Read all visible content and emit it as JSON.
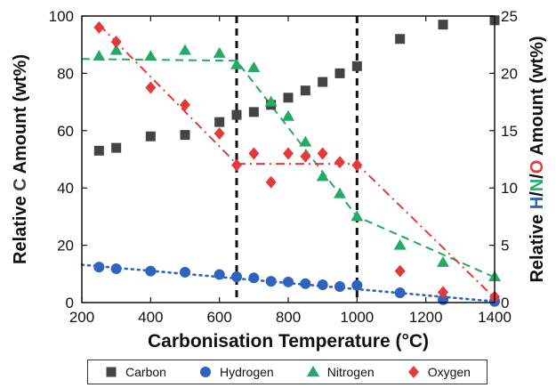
{
  "chart_data": {
    "type": "scatter",
    "xlabel": "Carbonisation Temperature (°C)",
    "ylabel_left": {
      "parts": [
        {
          "text": "Relative ",
          "color": "#111111"
        },
        {
          "text": "C",
          "color": "#444444"
        },
        {
          "text": " Amount (wt%)",
          "color": "#111111"
        }
      ]
    },
    "ylabel_right": {
      "parts": [
        {
          "text": "Relative ",
          "color": "#111111"
        },
        {
          "text": "H",
          "color": "#2f63c0"
        },
        {
          "text": "/",
          "color": "#111111"
        },
        {
          "text": "N",
          "color": "#22aa66"
        },
        {
          "text": "/",
          "color": "#111111"
        },
        {
          "text": "O",
          "color": "#e33b3b"
        },
        {
          "text": " Amount (wt%)",
          "color": "#111111"
        }
      ]
    },
    "xlim": [
      200,
      1400
    ],
    "ylim_left": [
      0,
      100
    ],
    "ylim_right": [
      0,
      25
    ],
    "xticks": [
      200,
      400,
      600,
      800,
      1000,
      1200,
      1400
    ],
    "yticks_left": [
      0,
      20,
      40,
      60,
      80,
      100
    ],
    "yticks_right": [
      0,
      5,
      10,
      15,
      20,
      25
    ],
    "vlines": [
      650,
      1000
    ],
    "grid": false,
    "legend_position": "bottom",
    "series": [
      {
        "name": "Carbon",
        "axis": "left",
        "marker": "square",
        "color": "#444444",
        "x": [
          250,
          300,
          400,
          500,
          600,
          650,
          700,
          750,
          800,
          850,
          900,
          950,
          1000,
          1125,
          1250,
          1400
        ],
        "y": [
          53,
          54,
          58,
          58.5,
          63,
          65.5,
          66.5,
          69,
          71.5,
          74,
          77,
          80,
          82.5,
          92,
          97,
          98.5
        ]
      },
      {
        "name": "Hydrogen",
        "axis": "right",
        "marker": "circle",
        "color": "#2f63c0",
        "fit_line": "dotted",
        "x": [
          250,
          300,
          400,
          500,
          600,
          650,
          700,
          750,
          800,
          850,
          900,
          950,
          1000,
          1125,
          1250,
          1400
        ],
        "y": [
          3.1,
          2.95,
          2.75,
          2.65,
          2.45,
          2.25,
          2.15,
          1.85,
          1.8,
          1.65,
          1.55,
          1.4,
          1.5,
          0.85,
          0.25,
          0.1
        ],
        "fit": {
          "x": [
            200,
            1400
          ],
          "y": [
            3.3,
            0.1
          ]
        }
      },
      {
        "name": "Nitrogen",
        "axis": "right",
        "marker": "triangle",
        "color": "#22aa66",
        "fit_line": "dashed",
        "x": [
          250,
          300,
          400,
          500,
          600,
          650,
          700,
          750,
          800,
          850,
          900,
          950,
          1000,
          1125,
          1250,
          1400
        ],
        "y": [
          21.5,
          22,
          21.5,
          22,
          21.75,
          20.75,
          20.5,
          17.5,
          16.25,
          14,
          11,
          9.5,
          7.5,
          5,
          3.5,
          2.25
        ],
        "fit": {
          "x": [
            200,
            650,
            1000,
            1400
          ],
          "y": [
            21.25,
            21.1,
            7.5,
            2.2
          ]
        }
      },
      {
        "name": "Oxygen",
        "axis": "right",
        "marker": "diamond",
        "color": "#e33b3b",
        "fit_line": "dashdot",
        "x": [
          250,
          300,
          400,
          500,
          600,
          650,
          700,
          750,
          800,
          850,
          900,
          950,
          1000,
          1125,
          1250,
          1400
        ],
        "y": [
          24,
          22.75,
          18.75,
          17.25,
          14.75,
          12,
          13,
          10.5,
          13,
          12.75,
          13,
          12.25,
          12,
          2.75,
          0.9,
          0.5
        ],
        "fit": {
          "x": [
            250,
            650,
            1000,
            1400
          ],
          "y": [
            24.25,
            12.1,
            12.1,
            0.4
          ]
        }
      }
    ]
  }
}
